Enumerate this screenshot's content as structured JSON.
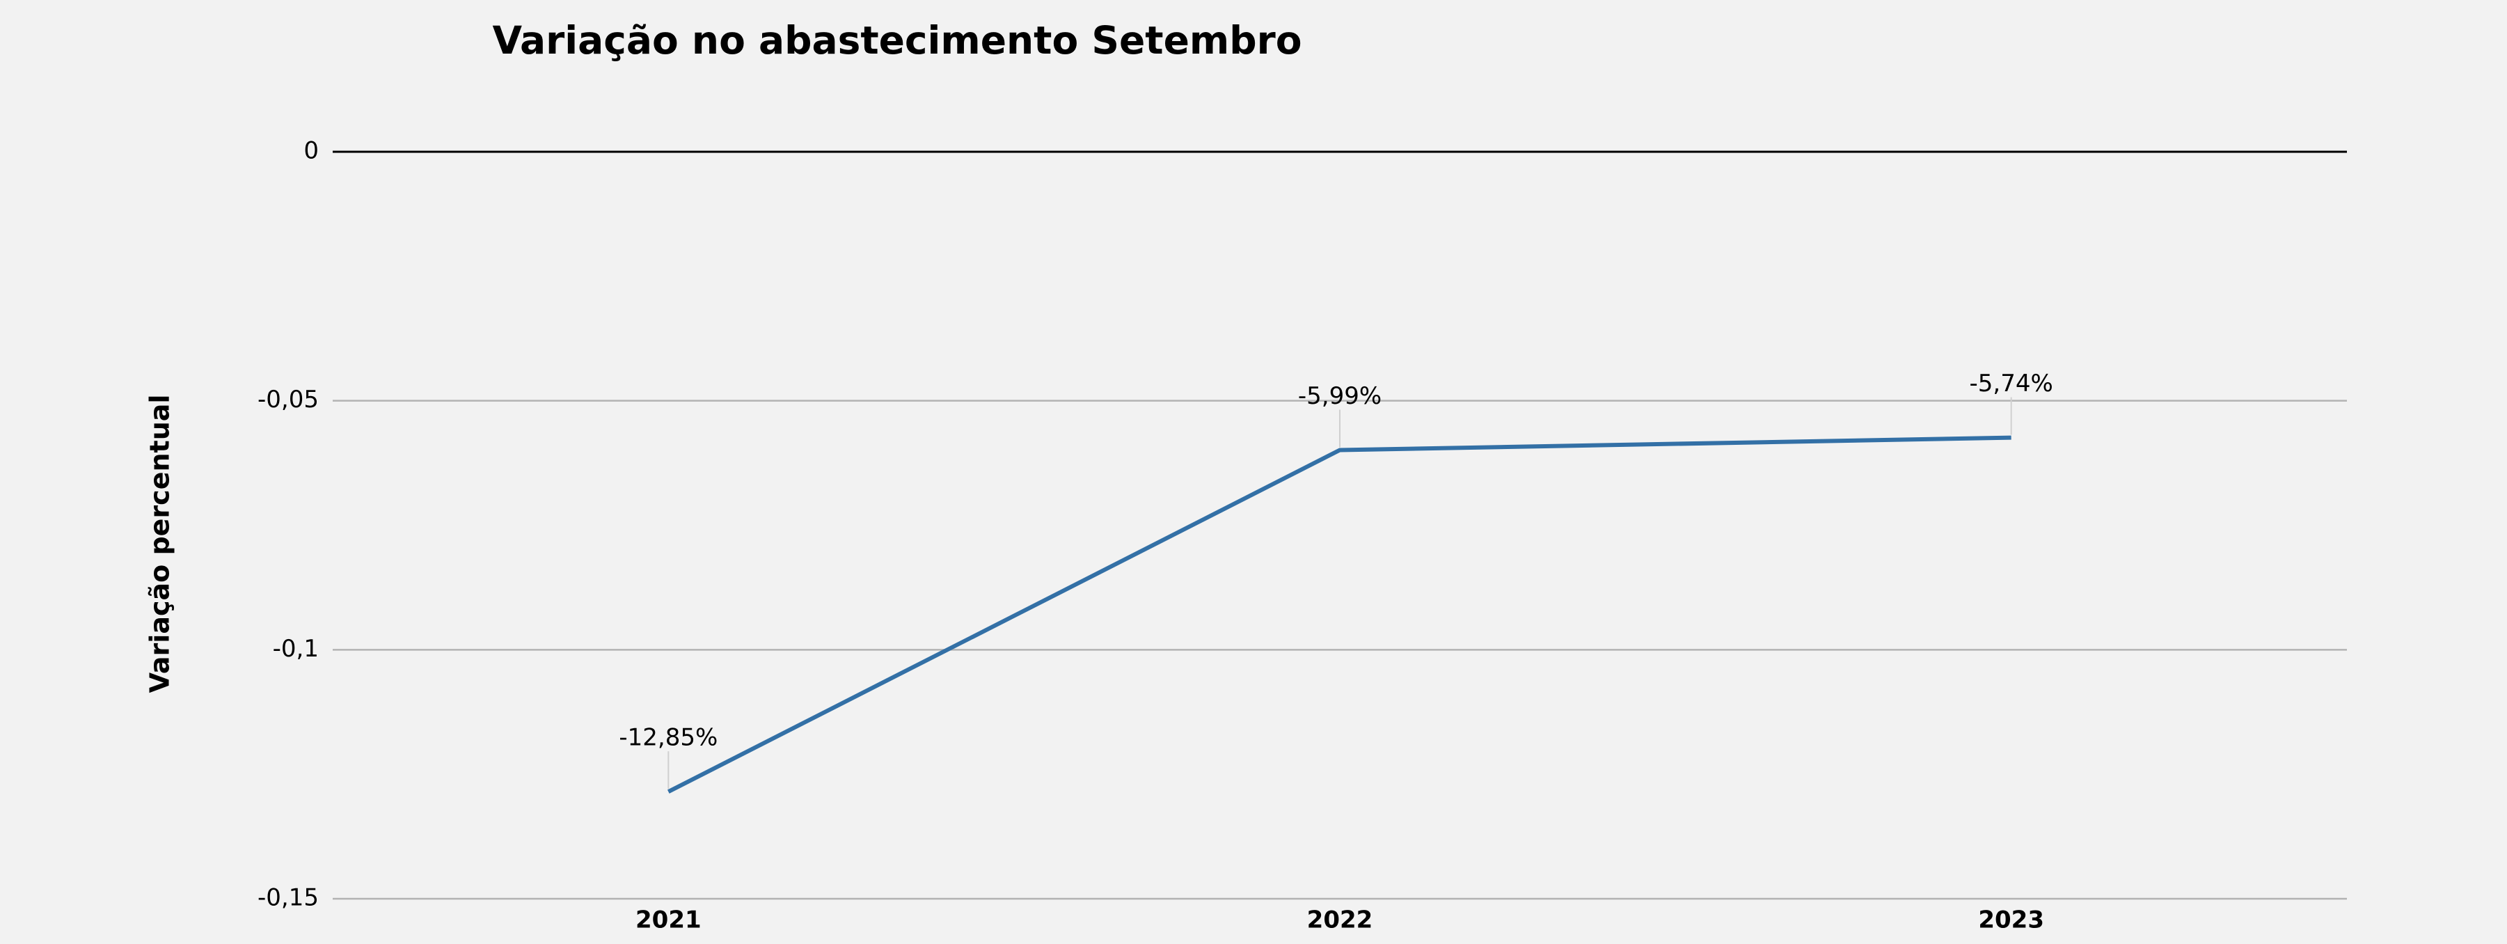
{
  "chart_data": {
    "type": "line",
    "title": "Variação no abastecimento Setembro",
    "y_label": "Variação percentual",
    "categories": [
      "2021",
      "2022",
      "2023"
    ],
    "series": [
      {
        "name": "Variação",
        "color": "#3370a6",
        "values": [
          -0.1285,
          -0.0599,
          -0.0574
        ],
        "value_labels": [
          "-12,85%",
          "-5,99%",
          "-5,74%"
        ]
      }
    ],
    "ylim": [
      -0.15,
      0
    ],
    "yticks": [
      0,
      {
        "value": -0.05,
        "label": "-0,05"
      },
      {
        "value": -0.1,
        "label": "-0,1"
      },
      {
        "value": -0.15,
        "label": "-0,15"
      }
    ],
    "grid": true
  }
}
